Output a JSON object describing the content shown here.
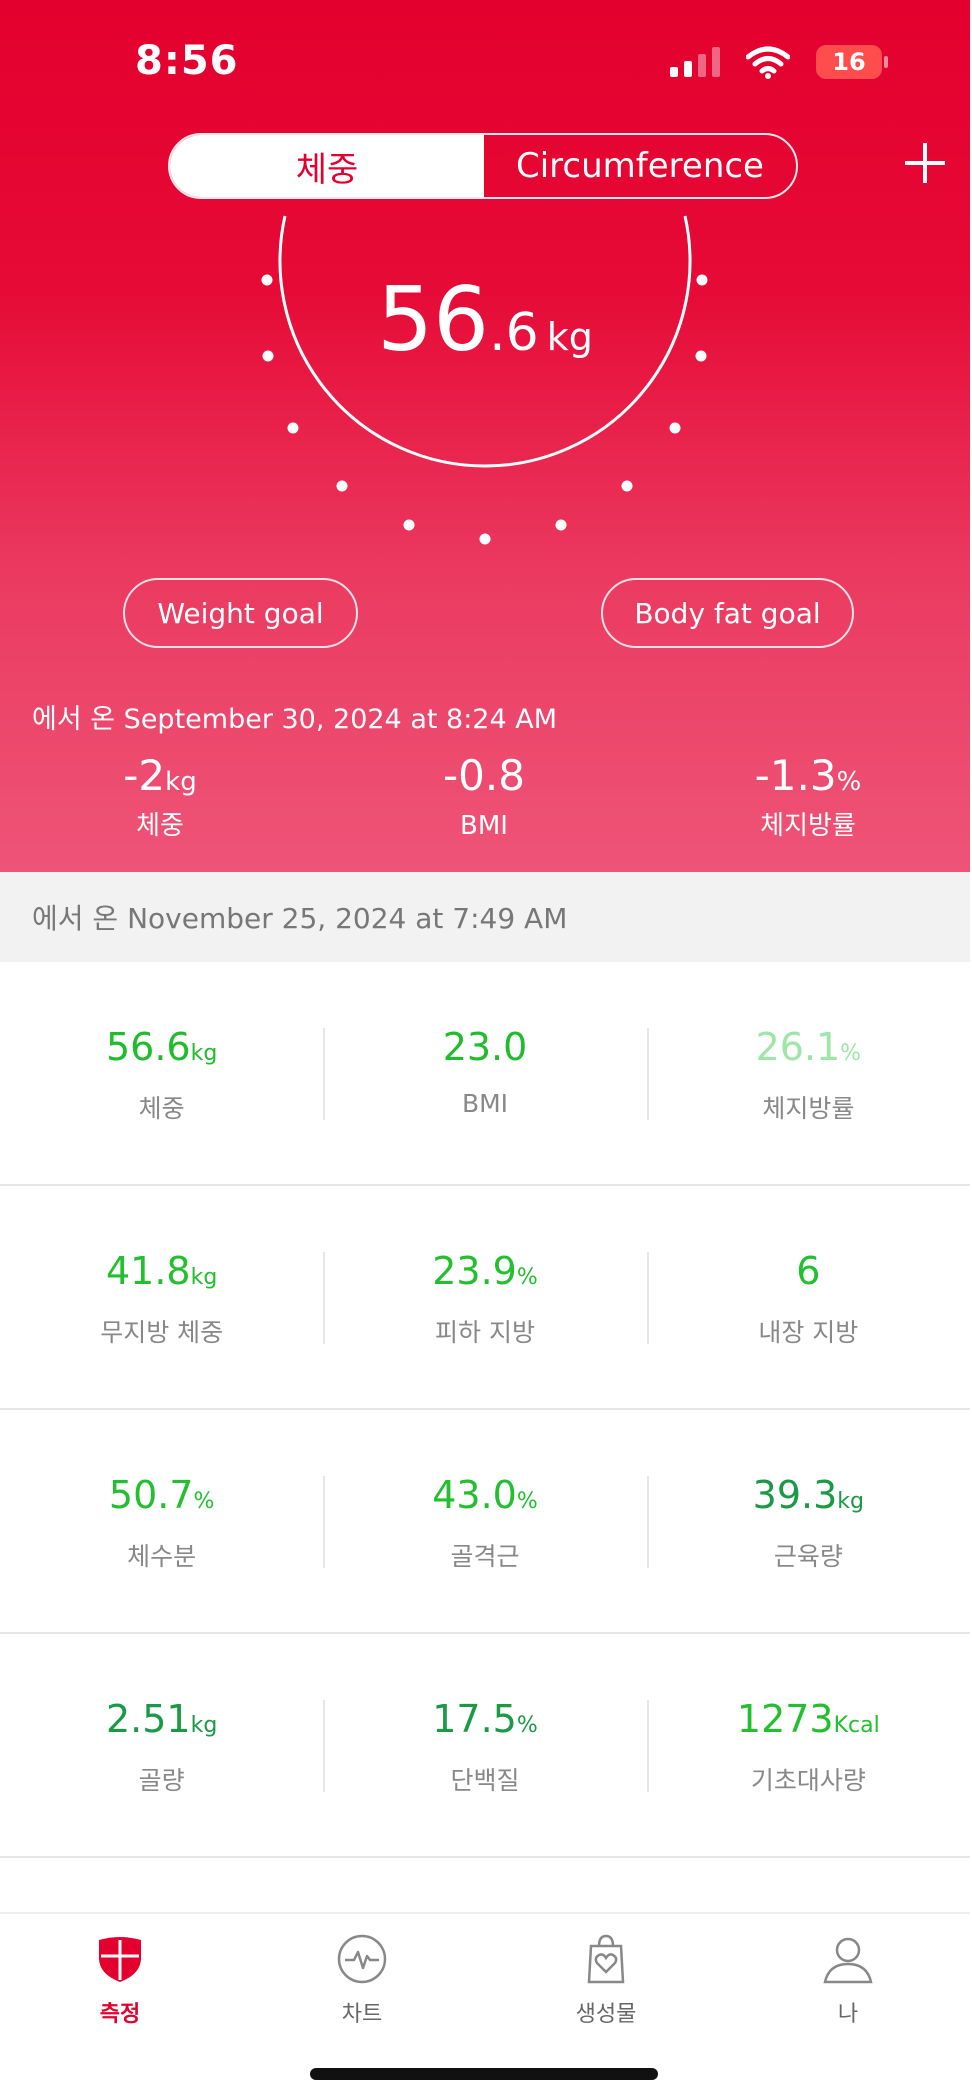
{
  "status": {
    "time": "8:56",
    "battery": "16"
  },
  "header": {
    "tab_weight": "체중",
    "tab_circumference": "Circumference"
  },
  "gauge": {
    "value_int": "56",
    "value_dec": ".6",
    "unit": "kg"
  },
  "goals": {
    "weight_goal": "Weight goal",
    "body_fat_goal": "Body fat goal"
  },
  "previous": {
    "date": "에서 온 September 30, 2024 at 8:24 AM",
    "deltas": [
      {
        "value": "-2",
        "unit": "kg",
        "label": "체중"
      },
      {
        "value": "-0.8",
        "unit": "",
        "label": "BMI"
      },
      {
        "value": "-1.3",
        "unit": "%",
        "label": "체지방률"
      }
    ]
  },
  "current": {
    "date": "에서 온 November 25, 2024 at 7:49 AM",
    "rows": [
      [
        {
          "value": "56.6",
          "unit": "kg",
          "label": "체중",
          "color": "#1fbd2c"
        },
        {
          "value": "23.0",
          "unit": "",
          "label": "BMI",
          "color": "#1fbd2c"
        },
        {
          "value": "26.1",
          "unit": "%",
          "label": "체지방률",
          "color": "#9ee6a7"
        }
      ],
      [
        {
          "value": "41.8",
          "unit": "kg",
          "label": "무지방 체중",
          "color": "#22c02f"
        },
        {
          "value": "23.9",
          "unit": "%",
          "label": "피하 지방",
          "color": "#22c02f"
        },
        {
          "value": "6",
          "unit": "",
          "label": "내장 지방",
          "color": "#22c02f"
        }
      ],
      [
        {
          "value": "50.7",
          "unit": "%",
          "label": "체수분",
          "color": "#22c02f"
        },
        {
          "value": "43.0",
          "unit": "%",
          "label": "골격근",
          "color": "#22c02f"
        },
        {
          "value": "39.3",
          "unit": "kg",
          "label": "근육량",
          "color": "#1a9a45"
        }
      ],
      [
        {
          "value": "2.51",
          "unit": "kg",
          "label": "골량",
          "color": "#1a9a45"
        },
        {
          "value": "17.5",
          "unit": "%",
          "label": "단백질",
          "color": "#1a9a45"
        },
        {
          "value": "1273",
          "unit": "Kcal",
          "label": "기초대사량",
          "color": "#22c02f"
        }
      ]
    ]
  },
  "tabbar": {
    "items": [
      {
        "label": "측정",
        "icon": "shield-icon"
      },
      {
        "label": "차트",
        "icon": "pulse-icon"
      },
      {
        "label": "생성물",
        "icon": "heart-bag-icon"
      },
      {
        "label": "나",
        "icon": "person-icon"
      }
    ]
  },
  "colors": {
    "accent": "#e4002e",
    "good": "#22c02f"
  }
}
